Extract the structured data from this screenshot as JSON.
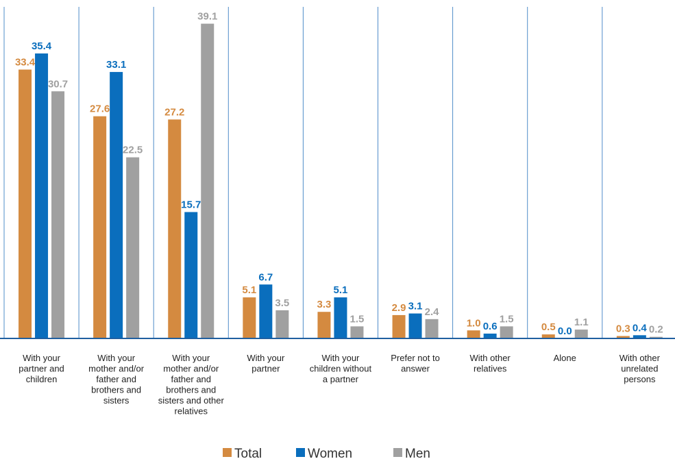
{
  "chart_data": {
    "type": "bar",
    "categories": [
      [
        "With your",
        "partner and",
        "children"
      ],
      [
        "With your",
        "mother and/or",
        "father and",
        "brothers and",
        "sisters"
      ],
      [
        "With your",
        "mother and/or",
        "father and",
        "brothers and",
        "sisters and other",
        "relatives"
      ],
      [
        "With your",
        "partner"
      ],
      [
        "With your",
        "children without",
        "a partner"
      ],
      [
        "Prefer not to",
        "answer"
      ],
      [
        "With other",
        "relatives"
      ],
      [
        "Alone"
      ],
      [
        "With other",
        "unrelated",
        "persons"
      ]
    ],
    "series": [
      {
        "name": "Total",
        "color": "#D48A40",
        "values": [
          33.4,
          27.6,
          27.2,
          5.1,
          3.3,
          2.9,
          1.0,
          0.5,
          0.3
        ]
      },
      {
        "name": "Women",
        "color": "#0A6EBD",
        "values": [
          35.4,
          33.1,
          15.7,
          6.7,
          5.1,
          3.1,
          0.6,
          0.0,
          0.4
        ]
      },
      {
        "name": "Men",
        "color": "#A0A0A0",
        "values": [
          30.7,
          22.5,
          39.1,
          3.5,
          1.5,
          2.4,
          1.5,
          1.1,
          0.2
        ]
      }
    ],
    "value_labels": [
      [
        "33.4",
        "27.6",
        "27.2",
        "5.1",
        "3.3",
        "2.9",
        "1.0",
        "0.5",
        "0.3"
      ],
      [
        "35.4",
        "33.1",
        "15.7",
        "6.7",
        "5.1",
        "3.1",
        "0.6",
        "0.0",
        "0.4"
      ],
      [
        "30.7",
        "22.5",
        "39.1",
        "3.5",
        "1.5",
        "2.4",
        "1.5",
        "1.1",
        "0.2"
      ]
    ],
    "label_colors": [
      "#D48A40",
      "#0A6EBD",
      "#A0A0A0"
    ],
    "axis_color": "#1F5FA0",
    "ylim": [
      0,
      40
    ],
    "grid": false,
    "legend": {
      "position": "bottom",
      "marker": "■"
    },
    "title": "",
    "xlabel": "",
    "ylabel": ""
  }
}
